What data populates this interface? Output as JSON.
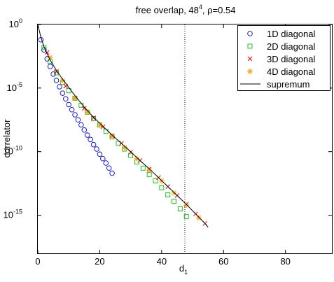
{
  "chart_data": {
    "type": "scatter",
    "title_main": "free overlap, 48",
    "title_sup": "4",
    "title_rest": ", ρ=0.54",
    "xlabel_main": "d",
    "xlabel_sub": "1",
    "ylabel": "correlator",
    "xlim": [
      0,
      95
    ],
    "ylim_log10": [
      -18,
      0
    ],
    "y_scale": "log",
    "x_ticks": [
      0,
      20,
      40,
      60,
      80
    ],
    "y_ticks": [
      {
        "exp": 0,
        "base": "10",
        "power": "0"
      },
      {
        "exp": -5,
        "base": "10",
        "power": "-5"
      },
      {
        "exp": -10,
        "base": "10",
        "power": "-10"
      },
      {
        "exp": -15,
        "base": "10",
        "power": "-15"
      }
    ],
    "vline_x": 47.5,
    "legend_position": "top-right",
    "grid": false,
    "series": [
      {
        "name": "1D diagonal",
        "marker": "circle",
        "color": "#0000ff",
        "x": [
          1,
          2,
          3,
          4,
          5,
          6,
          7,
          8,
          9,
          10,
          11,
          12,
          13,
          14,
          15,
          16,
          17,
          18,
          19,
          20,
          21,
          22,
          23,
          24
        ],
        "log10_y": [
          -1.2,
          -2.0,
          -2.7,
          -3.3,
          -3.9,
          -4.4,
          -4.9,
          -5.4,
          -5.85,
          -6.3,
          -6.7,
          -7.1,
          -7.5,
          -7.9,
          -8.3,
          -8.7,
          -9.05,
          -9.45,
          -9.8,
          -10.2,
          -10.55,
          -10.9,
          -11.3,
          -11.7
        ]
      },
      {
        "name": "2D diagonal",
        "marker": "square",
        "color": "#00cc00",
        "x": [
          2,
          4,
          6,
          8,
          10,
          12,
          14,
          16,
          18,
          20,
          22,
          24,
          26,
          28,
          30,
          32,
          34,
          36,
          38,
          40,
          42,
          44,
          46,
          48
        ],
        "log10_y": [
          -1.8,
          -2.9,
          -3.8,
          -4.55,
          -5.2,
          -5.8,
          -6.35,
          -6.9,
          -7.4,
          -7.9,
          -8.4,
          -8.85,
          -9.35,
          -9.8,
          -10.3,
          -10.8,
          -11.3,
          -11.8,
          -12.3,
          -12.85,
          -13.4,
          -13.9,
          -14.5,
          -15.1
        ]
      },
      {
        "name": "3D diagonal",
        "marker": "x",
        "color": "#ff0000",
        "x": [
          3,
          6,
          9,
          12,
          15,
          18,
          21,
          24,
          27,
          30,
          33,
          36,
          39,
          42,
          45,
          48,
          51,
          54
        ],
        "log10_y": [
          -2.2,
          -3.7,
          -4.85,
          -5.8,
          -6.6,
          -7.35,
          -8.05,
          -8.75,
          -9.35,
          -10.05,
          -10.7,
          -11.35,
          -12.05,
          -12.75,
          -13.45,
          -14.15,
          -14.9,
          -15.65
        ]
      },
      {
        "name": "4D diagonal",
        "marker": "star",
        "color": "#ff9900",
        "x": [
          4,
          8,
          12,
          16,
          20,
          24,
          28,
          32,
          36,
          40,
          44,
          48,
          52
        ],
        "log10_y": [
          -2.6,
          -4.4,
          -5.8,
          -6.9,
          -7.9,
          -8.8,
          -9.7,
          -10.55,
          -11.45,
          -12.3,
          -13.25,
          -14.2,
          -15.2
        ]
      },
      {
        "name": "supremum",
        "marker": "line",
        "color": "#000000",
        "x": [
          0,
          1,
          2,
          3,
          4,
          6,
          8,
          10,
          12,
          15,
          18,
          21,
          24,
          27,
          30,
          33,
          36,
          39,
          42,
          45,
          48,
          51,
          54,
          55
        ],
        "log10_y": [
          0,
          -1.0,
          -1.75,
          -2.3,
          -2.8,
          -3.6,
          -4.3,
          -4.95,
          -5.6,
          -6.5,
          -7.3,
          -8.0,
          -8.7,
          -9.35,
          -10.0,
          -10.7,
          -11.35,
          -12.05,
          -12.75,
          -13.45,
          -14.15,
          -14.9,
          -15.65,
          -15.95
        ]
      }
    ]
  }
}
